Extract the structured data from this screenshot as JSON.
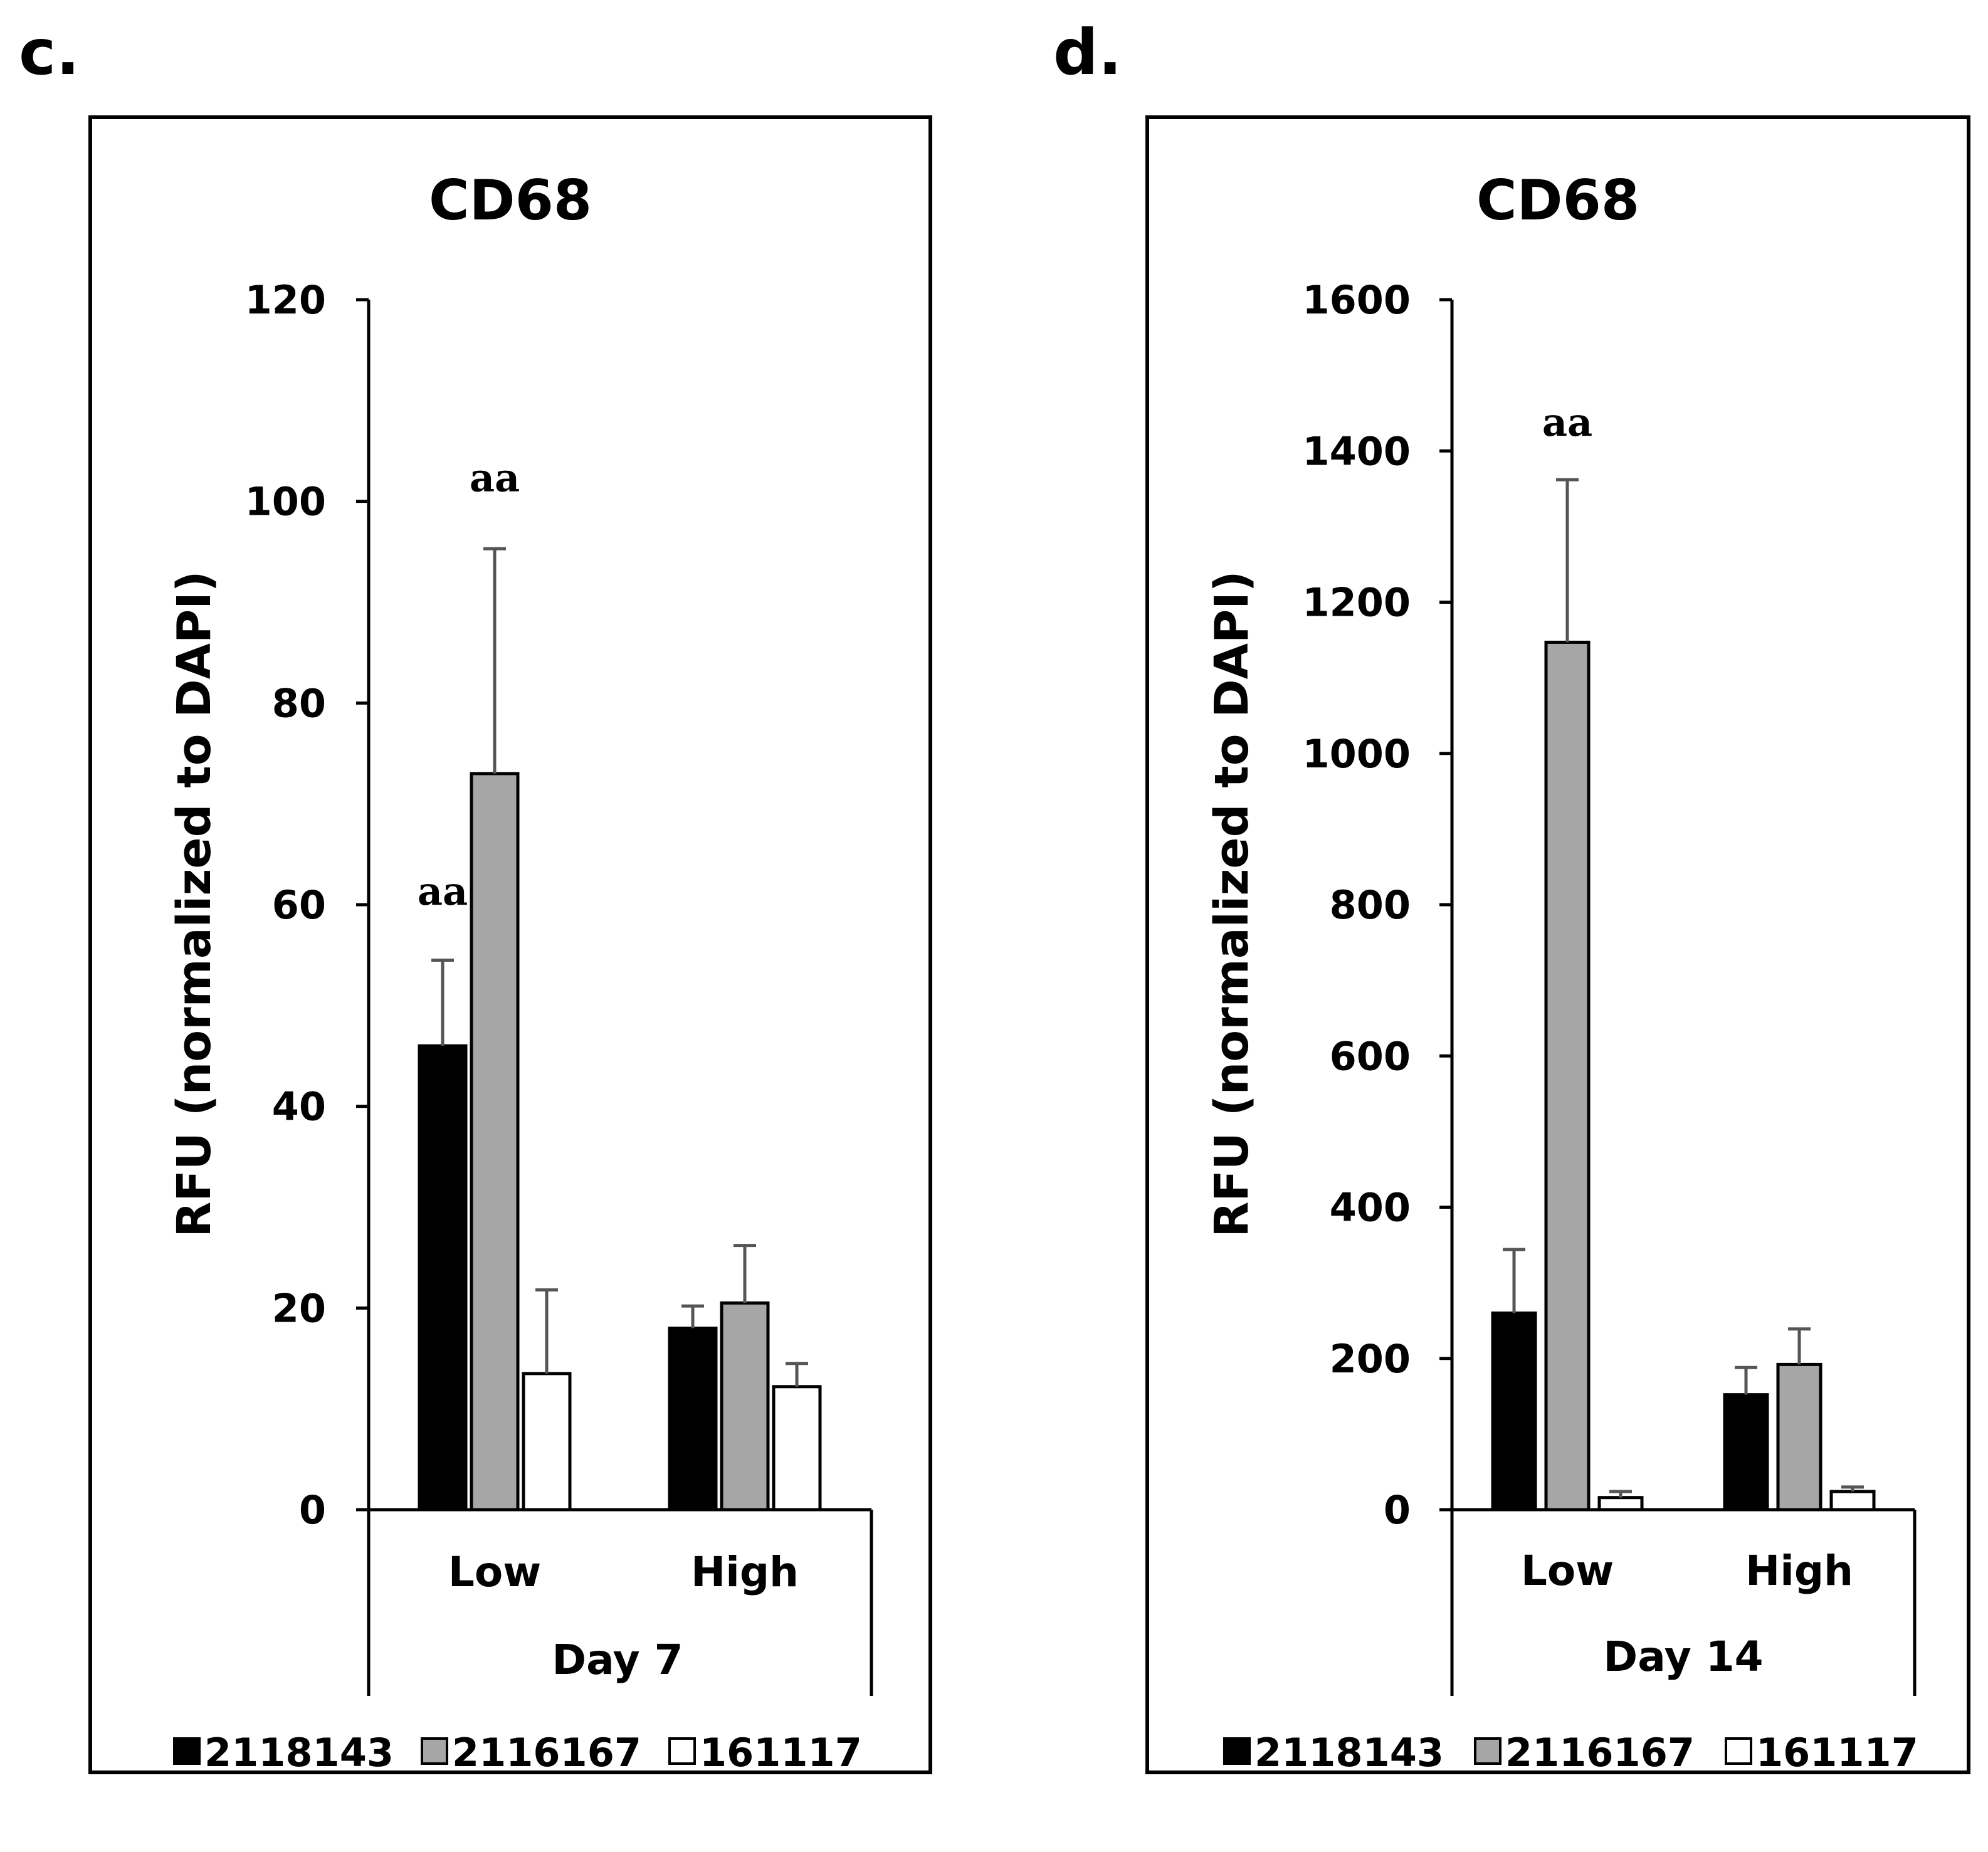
{
  "figure": {
    "colors": {
      "background": "#ffffff",
      "axis": "#000000",
      "error_bar": "#555555"
    }
  },
  "chart_data": [
    {
      "panel_label": "c.",
      "type": "bar",
      "title": "CD68",
      "xlabel": "Day 7",
      "ylabel": "RFU (normalized to DAPI)",
      "ylim": [
        0,
        120
      ],
      "yticks": [
        0,
        20,
        40,
        60,
        80,
        100,
        120
      ],
      "categories": [
        "Low",
        "High"
      ],
      "series": [
        {
          "name": "2118143",
          "color": "#000000",
          "values": [
            46,
            18
          ],
          "errors": [
            8.5,
            2.2
          ]
        },
        {
          "name": "2116167",
          "color": "#a6a6a6",
          "values": [
            73,
            20.5
          ],
          "errors": [
            22.3,
            5.7
          ]
        },
        {
          "name": "161117",
          "color": "#ffffff",
          "values": [
            13.5,
            12.2
          ],
          "errors": [
            8.3,
            2.3
          ]
        }
      ],
      "annotations": [
        {
          "text": "aa",
          "category": "Low",
          "series": "2118143",
          "y": 60
        },
        {
          "text": "aa",
          "category": "Low",
          "series": "2116167",
          "y": 101
        }
      ],
      "legend": {
        "position": "bottom",
        "entries": [
          "2118143",
          "2116167",
          "161117"
        ]
      }
    },
    {
      "panel_label": "d.",
      "type": "bar",
      "title": "CD68",
      "xlabel": "Day 14",
      "ylabel": "RFU (normalized to DAPI)",
      "ylim": [
        0,
        1600
      ],
      "yticks": [
        0,
        200,
        400,
        600,
        800,
        1000,
        1200,
        1400,
        1600
      ],
      "categories": [
        "Low",
        "High"
      ],
      "series": [
        {
          "name": "2118143",
          "color": "#000000",
          "values": [
            260,
            152
          ],
          "errors": [
            84,
            36
          ]
        },
        {
          "name": "2116167",
          "color": "#a6a6a6",
          "values": [
            1147,
            192
          ],
          "errors": [
            215,
            47
          ]
        },
        {
          "name": "161117",
          "color": "#ffffff",
          "values": [
            16,
            24
          ],
          "errors": [
            8,
            6
          ]
        }
      ],
      "annotations": [
        {
          "text": "aa",
          "category": "Low",
          "series": "2116167",
          "y": 1420
        }
      ],
      "legend": {
        "position": "bottom",
        "entries": [
          "2118143",
          "2116167",
          "161117"
        ]
      }
    }
  ]
}
